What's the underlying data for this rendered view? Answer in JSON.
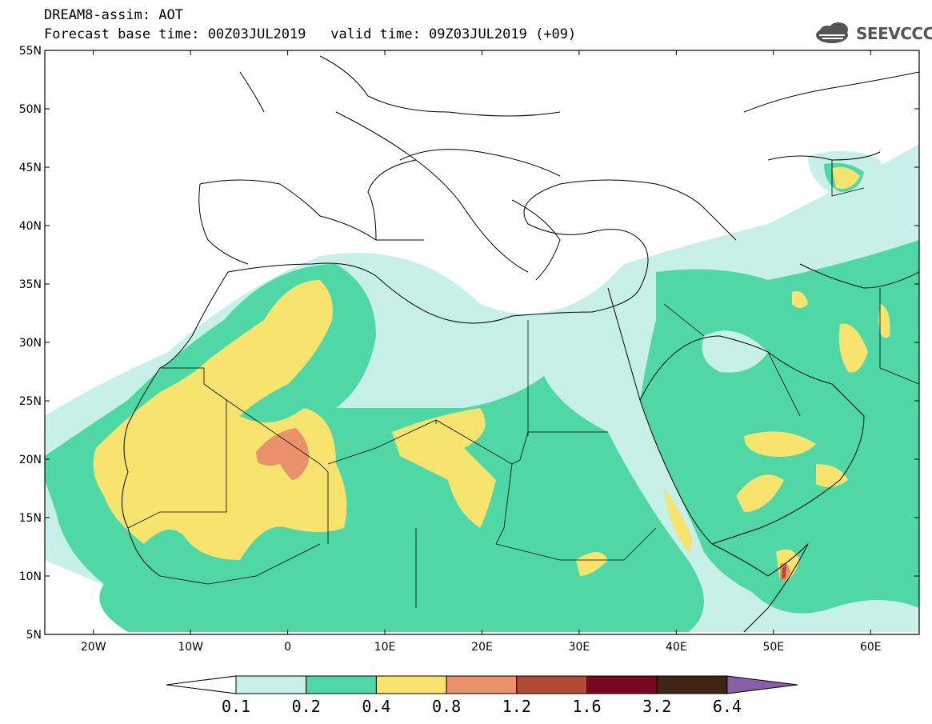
{
  "header": {
    "title": "DREAM8-assim: AOT",
    "subtitle": "Forecast base time: 00Z03JUL2019   valid time: 09Z03JUL2019 (+09)",
    "logo_text": "SEEVCCC"
  },
  "map": {
    "lon_range": [
      -25,
      65
    ],
    "lat_range": [
      5,
      55
    ],
    "lat_ticks": [
      "5N",
      "10N",
      "15N",
      "20N",
      "25N",
      "30N",
      "35N",
      "40N",
      "45N",
      "50N",
      "55N"
    ],
    "lon_ticks": [
      "20W",
      "10W",
      "0",
      "10E",
      "20E",
      "30E",
      "40E",
      "50E",
      "60E"
    ],
    "field": "Aerosol optical thickness (dust)"
  },
  "legend": {
    "levels": [
      "0.1",
      "0.2",
      "0.4",
      "0.8",
      "1.2",
      "1.6",
      "3.2",
      "6.4"
    ],
    "colors": [
      "#ffffff",
      "#c6f0e8",
      "#4fd7a6",
      "#f6e46f",
      "#e8916a",
      "#b04a37",
      "#7a0722",
      "#3f2614",
      "#8a5fa8"
    ]
  }
}
